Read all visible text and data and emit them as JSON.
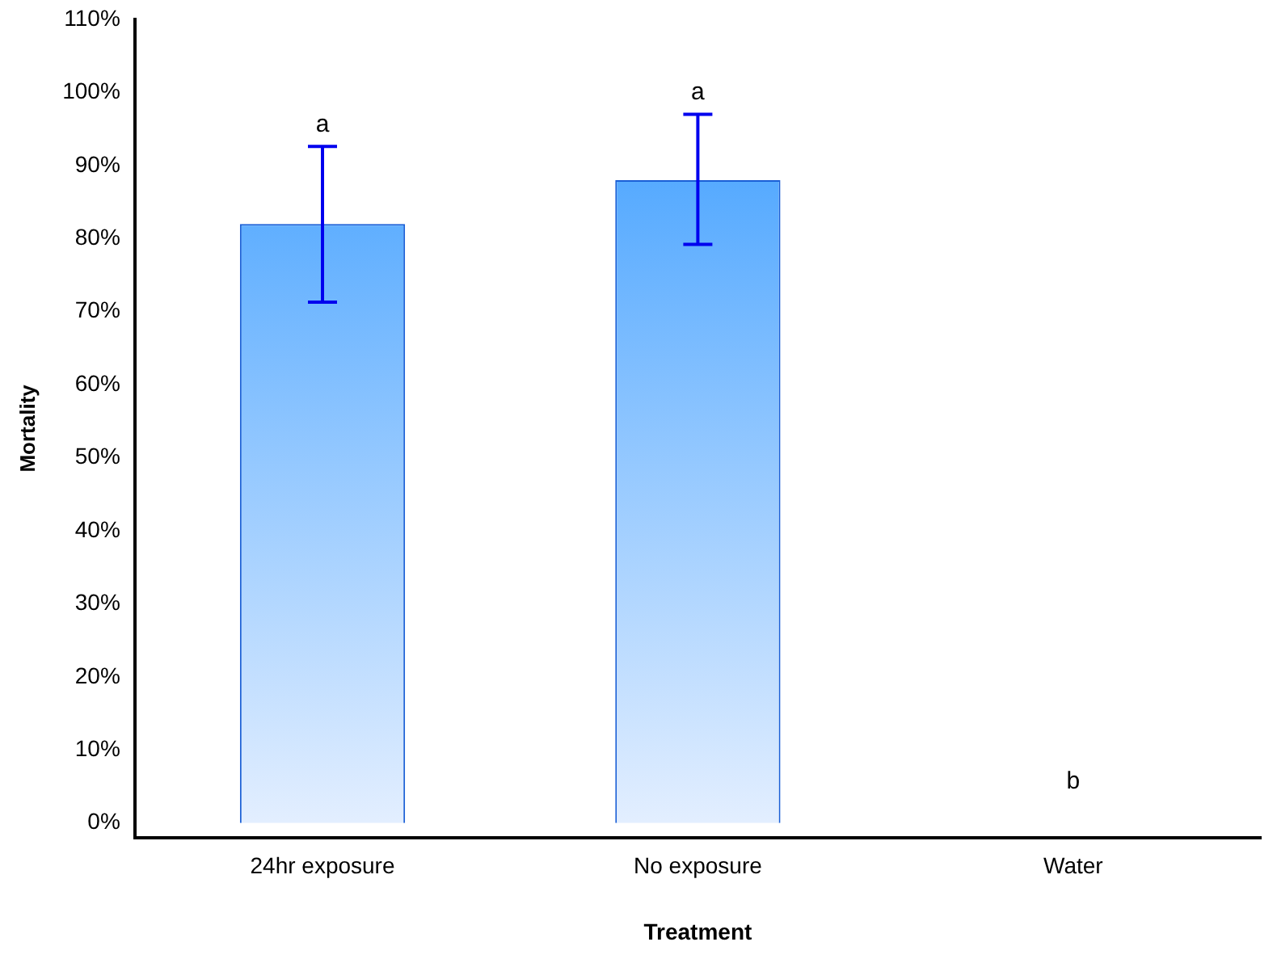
{
  "chart_data": {
    "type": "bar",
    "xlabel": "Treatment",
    "ylabel": "Mortality",
    "categories": [
      "24hr exposure",
      "No exposure",
      "Water"
    ],
    "values": [
      82,
      88,
      0
    ],
    "errors": [
      [
        71.3,
        92.6
      ],
      [
        79.2,
        97
      ],
      null
    ],
    "color": "#3399ff",
    "ylim": [
      -2,
      110
    ],
    "yticks": [
      {
        "value": 0,
        "label": "0%"
      },
      {
        "value": 10,
        "label": "10%"
      },
      {
        "value": 20,
        "label": "20%"
      },
      {
        "value": 30,
        "label": "30%"
      },
      {
        "value": 40,
        "label": "40%"
      },
      {
        "value": 50,
        "label": "50%"
      },
      {
        "value": 60,
        "label": "60%"
      },
      {
        "value": 70,
        "label": "70%"
      },
      {
        "value": 80,
        "label": "80%"
      },
      {
        "value": 90,
        "label": "90%"
      },
      {
        "value": 100,
        "label": "100%"
      },
      {
        "value": 110,
        "label": "110%"
      }
    ],
    "annotations": [
      "a",
      "a",
      "b"
    ],
    "grid": false,
    "legend": false
  }
}
